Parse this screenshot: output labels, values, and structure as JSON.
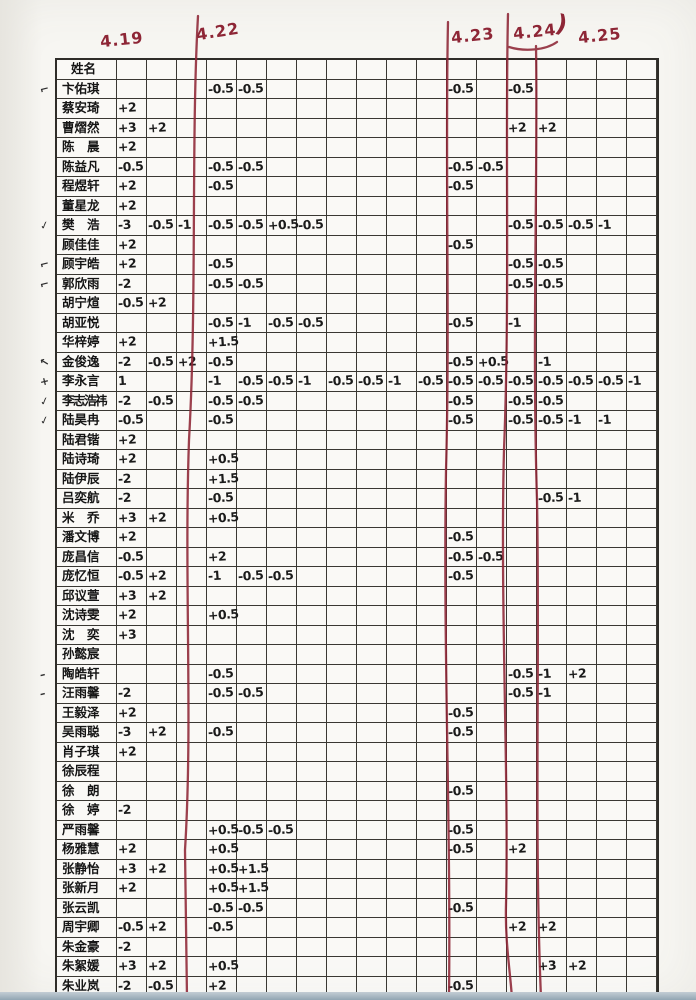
{
  "ink_colors": {
    "red_pen": "#8e2636",
    "black_pen": "#1b1b1b",
    "grid_line": "#3a3833"
  },
  "dates": [
    {
      "label": "4.19"
    },
    {
      "label": "4.22"
    },
    {
      "label": "4.23"
    },
    {
      "label": "4.24",
      "suffix": ")"
    },
    {
      "label": "4.25"
    }
  ],
  "table": {
    "name_header": "姓名",
    "data_columns": 18,
    "rows": [
      {
        "name": "卞佑琪",
        "mark": "curve",
        "cells": {
          "4": "-0.5",
          "5": "-0.5",
          "12": "-0.5",
          "14": "-0.5"
        }
      },
      {
        "name": "蔡安琦",
        "cells": {
          "1": "+2"
        }
      },
      {
        "name": "曹熠然",
        "cells": {
          "1": "+3",
          "2": "+2",
          "14": "+2",
          "15": "+2"
        }
      },
      {
        "name": "陈　晨",
        "cells": {
          "1": "+2"
        }
      },
      {
        "name": "陈益凡",
        "cells": {
          "1": "-0.5",
          "4": "-0.5",
          "5": "-0.5",
          "12": "-0.5",
          "13": "-0.5"
        }
      },
      {
        "name": "程煜轩",
        "cells": {
          "1": "+2",
          "4": "-0.5",
          "12": "-0.5"
        }
      },
      {
        "name": "董星龙",
        "cells": {
          "1": "+2"
        }
      },
      {
        "name": "樊　浩",
        "mark": "tick",
        "cells": {
          "1": "-3",
          "2": "-0.5",
          "3": "-1",
          "4": "-0.5",
          "5": "-0.5",
          "6": "+0.5",
          "7": "-0.5",
          "14": "-0.5",
          "15": "-0.5",
          "16": "-0.5",
          "17": "-1"
        }
      },
      {
        "name": "顾佳佳",
        "cells": {
          "1": "+2",
          "12": "-0.5"
        }
      },
      {
        "name": "顾宇皓",
        "mark": "curve",
        "cells": {
          "1": "+2",
          "4": "-0.5",
          "14": "-0.5",
          "15": "-0.5"
        }
      },
      {
        "name": "郭欣雨",
        "mark": "curve",
        "cells": {
          "1": "-2",
          "4": "-0.5",
          "5": "-0.5",
          "14": "-0.5",
          "15": "-0.5"
        }
      },
      {
        "name": "胡宁煊",
        "cells": {
          "1": "-0.5",
          "2": "+2"
        }
      },
      {
        "name": "胡亚悦",
        "cells": {
          "4": "-0.5",
          "5": "-1",
          "6": "-0.5",
          "7": "-0.5",
          "12": "-0.5",
          "14": "-1"
        }
      },
      {
        "name": "华梓婷",
        "cells": {
          "1": "+2",
          "4": "+1.5"
        }
      },
      {
        "name": "金俊逸",
        "mark": "arrow",
        "cells": {
          "1": "-2",
          "2": "-0.5",
          "3": "+2",
          "4": "-0.5",
          "12": "-0.5",
          "13": "+0.5",
          "15": "-1"
        }
      },
      {
        "name": "李永言",
        "mark": "plus",
        "cells": {
          "1": "1",
          "4": "-1",
          "5": "-0.5",
          "6": "-0.5",
          "7": "-1",
          "8": "-0.5",
          "9": "-0.5",
          "10": "-1",
          "11": "-0.5",
          "12": "-0.5",
          "13": "-0.5",
          "14": "-0.5",
          "15": "-0.5",
          "16": "-0.5",
          "17": "-0.5",
          "18": "-1"
        }
      },
      {
        "name": "李志浩祎",
        "mark": "tick",
        "cells": {
          "1": "-2",
          "2": "-0.5",
          "4": "-0.5",
          "5": "-0.5",
          "12": "-0.5",
          "14": "-0.5",
          "15": "-0.5"
        }
      },
      {
        "name": "陆昊冉",
        "mark": "tick",
        "cells": {
          "1": "-0.5",
          "4": "-0.5",
          "12": "-0.5",
          "14": "-0.5",
          "15": "-0.5",
          "16": "-1",
          "17": "-1"
        }
      },
      {
        "name": "陆君锴",
        "cells": {
          "1": "+2"
        }
      },
      {
        "name": "陆诗琦",
        "cells": {
          "1": "+2",
          "4": "+0.5"
        }
      },
      {
        "name": "陆伊辰",
        "cells": {
          "1": "-2",
          "4": "+1.5"
        }
      },
      {
        "name": "吕奕航",
        "cells": {
          "1": "-2",
          "4": "-0.5",
          "15": "-0.5",
          "16": "-1"
        }
      },
      {
        "name": "米　乔",
        "cells": {
          "1": "+3",
          "2": "+2",
          "4": "+0.5"
        }
      },
      {
        "name": "潘文博",
        "cells": {
          "1": "+2",
          "12": "-0.5"
        }
      },
      {
        "name": "庞昌信",
        "cells": {
          "1": "-0.5",
          "4": "+2",
          "12": "-0.5",
          "13": "-0.5"
        }
      },
      {
        "name": "庞忆恒",
        "cells": {
          "1": "-0.5",
          "2": "+2",
          "4": "-1",
          "5": "-0.5",
          "6": "-0.5",
          "12": "-0.5"
        }
      },
      {
        "name": "邱议萱",
        "cells": {
          "1": "+3",
          "2": "+2"
        }
      },
      {
        "name": "沈诗雯",
        "cells": {
          "1": "+2",
          "4": "+0.5"
        }
      },
      {
        "name": "沈　奕",
        "cells": {
          "1": "+3"
        }
      },
      {
        "name": "孙懿宸",
        "cells": {}
      },
      {
        "name": "陶皓轩",
        "mark": "dash",
        "cells": {
          "4": "-0.5",
          "14": "-0.5",
          "15": "-1",
          "16": "+2"
        }
      },
      {
        "name": "汪雨馨",
        "mark": "dash",
        "cells": {
          "1": "-2",
          "4": "-0.5",
          "5": "-0.5",
          "14": "-0.5",
          "15": "-1"
        }
      },
      {
        "name": "王毅泽",
        "cells": {
          "1": "+2",
          "12": "-0.5"
        }
      },
      {
        "name": "吴雨聪",
        "cells": {
          "1": "-3",
          "2": "+2",
          "4": "-0.5",
          "12": "-0.5"
        }
      },
      {
        "name": "肖子琪",
        "cells": {
          "1": "+2"
        }
      },
      {
        "name": "徐辰程",
        "cells": {}
      },
      {
        "name": "徐　朗",
        "cells": {
          "12": "-0.5"
        }
      },
      {
        "name": "徐　婷",
        "cells": {
          "1": "-2"
        }
      },
      {
        "name": "严雨馨",
        "cells": {
          "4": "+0.5",
          "5": "-0.5",
          "6": "-0.5",
          "12": "-0.5"
        }
      },
      {
        "name": "杨雅慧",
        "cells": {
          "1": "+2",
          "4": "+0.5",
          "12": "-0.5",
          "14": "+2"
        }
      },
      {
        "name": "张静怡",
        "cells": {
          "1": "+3",
          "2": "+2",
          "4": "+0.5",
          "5": "+1.5"
        }
      },
      {
        "name": "张新月",
        "cells": {
          "1": "+2",
          "4": "+0.5",
          "5": "+1.5"
        }
      },
      {
        "name": "张云凯",
        "cells": {
          "4": "-0.5",
          "5": "-0.5",
          "12": "-0.5"
        }
      },
      {
        "name": "周宇卿",
        "cells": {
          "1": "-0.5",
          "2": "+2",
          "4": "-0.5",
          "14": "+2",
          "15": "+2"
        }
      },
      {
        "name": "朱金豪",
        "cells": {
          "1": "-2"
        }
      },
      {
        "name": "朱絮媛",
        "cells": {
          "1": "+3",
          "2": "+2",
          "4": "+0.5",
          "15": "+3",
          "16": "+2"
        }
      },
      {
        "name": "朱业岚",
        "cells": {
          "1": "-2",
          "2": "-0.5",
          "4": "+2",
          "12": "-0.5"
        }
      }
    ]
  }
}
